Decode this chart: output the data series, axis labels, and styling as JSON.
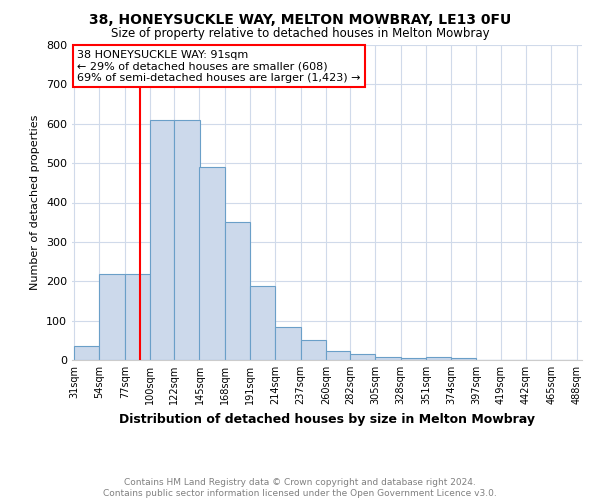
{
  "title1": "38, HONEYSUCKLE WAY, MELTON MOWBRAY, LE13 0FU",
  "title2": "Size of property relative to detached houses in Melton Mowbray",
  "xlabel": "Distribution of detached houses by size in Melton Mowbray",
  "ylabel": "Number of detached properties",
  "footnote": "Contains HM Land Registry data © Crown copyright and database right 2024.\nContains public sector information licensed under the Open Government Licence v3.0.",
  "annotation_line1": "38 HONEYSUCKLE WAY: 91sqm",
  "annotation_line2": "← 29% of detached houses are smaller (608)",
  "annotation_line3": "69% of semi-detached houses are larger (1,423) →",
  "bin_edges": [
    31,
    54,
    77,
    100,
    122,
    145,
    168,
    191,
    214,
    237,
    260,
    282,
    305,
    328,
    351,
    374,
    397,
    419,
    442,
    465,
    488
  ],
  "bar_heights": [
    35,
    218,
    218,
    610,
    610,
    490,
    350,
    188,
    85,
    52,
    22,
    15,
    8,
    6,
    8,
    5,
    0,
    0,
    0,
    0
  ],
  "bar_color": "#ccd9eb",
  "bar_edge_color": "#6a9fc8",
  "vline_x": 91,
  "vline_color": "red",
  "ylim": [
    0,
    800
  ],
  "yticks": [
    0,
    100,
    200,
    300,
    400,
    500,
    600,
    700,
    800
  ],
  "grid_color": "#d0daea",
  "background_color": "#ffffff",
  "annotation_box_color": "#ffffff",
  "annotation_box_edge_color": "red",
  "title1_fontsize": 10,
  "title2_fontsize": 8.5,
  "xlabel_fontsize": 9,
  "ylabel_fontsize": 8,
  "tick_fontsize": 7,
  "annotation_fontsize": 8,
  "footnote_fontsize": 6.5
}
